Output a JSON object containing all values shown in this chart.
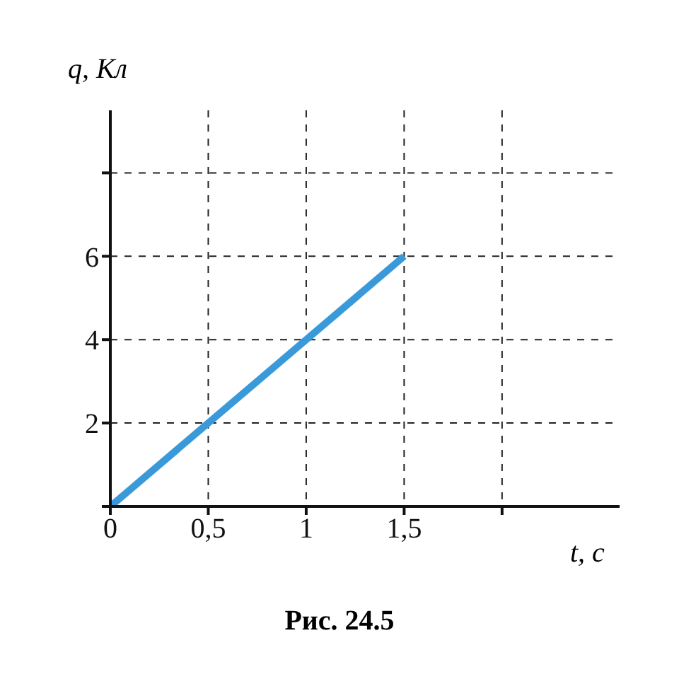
{
  "chart_data": {
    "type": "line",
    "xlabel": "t, с",
    "ylabel": "q, Кл",
    "annotations": [
      "Рис. 24.5"
    ],
    "x": [
      0,
      1.5
    ],
    "series": [
      {
        "color": "#3a9ad9",
        "values": [
          0,
          6
        ]
      }
    ],
    "xlim": [
      0,
      2.6
    ],
    "ylim": [
      0,
      9.5
    ],
    "xticks": [
      0,
      {
        "value": 0.5,
        "label": "0,5"
      },
      1,
      {
        "value": 1.5,
        "label": "1,5"
      },
      {
        "value": 2,
        "label": null
      }
    ],
    "yticks": [
      {
        "value": 0,
        "label": null
      },
      2,
      4,
      6,
      {
        "value": 8,
        "label": null
      }
    ],
    "grid": true,
    "marker": "none",
    "line_style": "solid"
  }
}
